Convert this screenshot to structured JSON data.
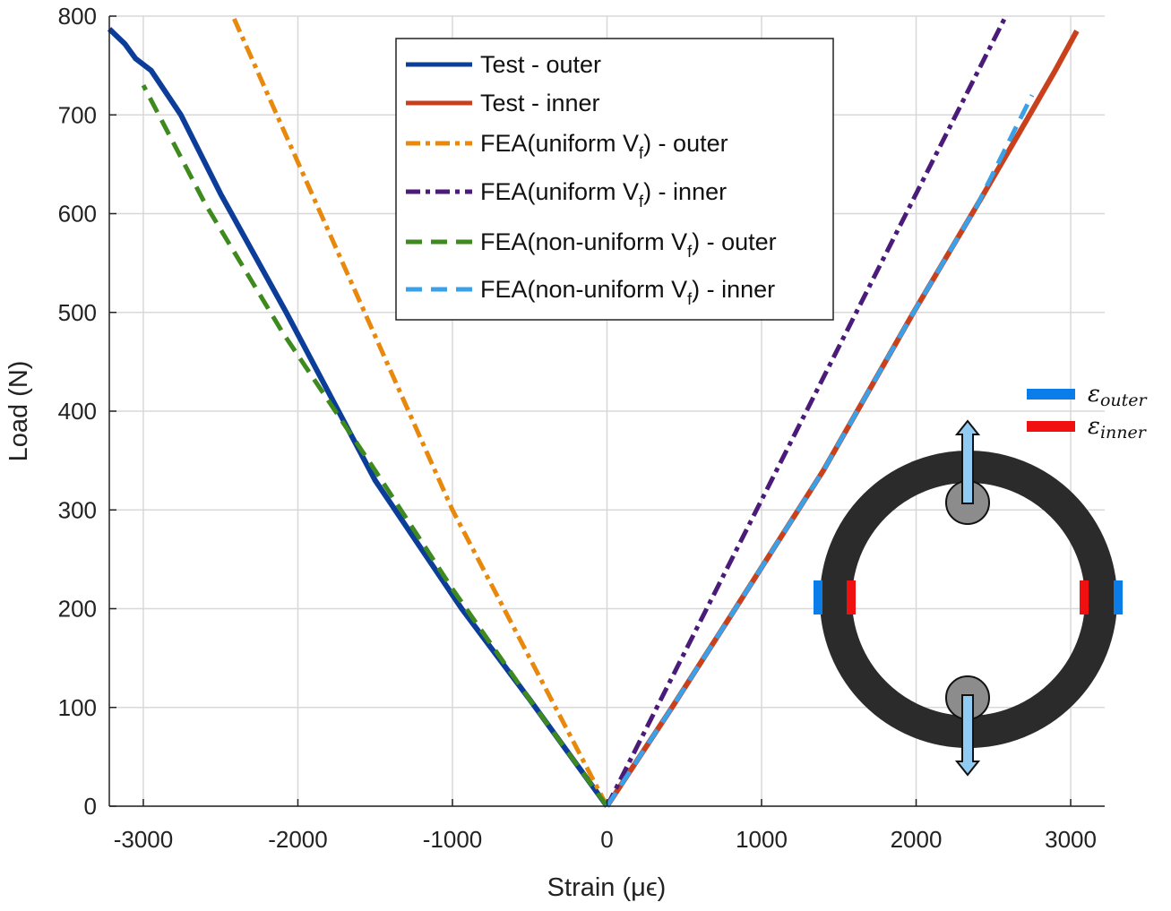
{
  "chart_data": {
    "type": "line",
    "title": "",
    "xlabel": "Strain (μϵ)",
    "ylabel": "Load (N)",
    "xlim": [
      -3220,
      3220
    ],
    "ylim": [
      0,
      800
    ],
    "xticks": [
      -3000,
      -2000,
      -1000,
      0,
      1000,
      2000,
      3000
    ],
    "xtick_labels": [
      "-3000",
      "-2000",
      "-1000",
      "0",
      "1000",
      "2000",
      "3000"
    ],
    "yticks": [
      0,
      100,
      200,
      300,
      400,
      500,
      600,
      700,
      800
    ],
    "ytick_labels": [
      "0",
      "100",
      "200",
      "300",
      "400",
      "500",
      "600",
      "700",
      "800"
    ],
    "grid": true,
    "legend_position": "top-center",
    "series": [
      {
        "name": "Test - outer",
        "label_main": "Test - outer",
        "sub": "",
        "label_tail": "",
        "color": "#0b3d99",
        "style": "solid",
        "x": [
          0,
          -500,
          -940,
          -1500,
          -2075,
          -2500,
          -2757,
          -2950,
          -3050,
          -3120,
          -3220
        ],
        "y": [
          0,
          108,
          200,
          330,
          500,
          620,
          700,
          745,
          757,
          772,
          787
        ]
      },
      {
        "name": "Test - inner",
        "label_main": "Test - inner",
        "sub": "",
        "label_tail": "",
        "color": "#c8401c",
        "style": "solid",
        "x": [
          0,
          420,
          830,
          1400,
          1983,
          2400,
          2734,
          2900,
          3040
        ],
        "y": [
          0,
          100,
          200,
          340,
          500,
          610,
          700,
          745,
          785
        ]
      },
      {
        "name": "FEA(uniform Vf) - outer",
        "label_main": "FEA(uniform V",
        "sub": "f",
        "label_tail": ") - outer",
        "color": "#e8890e",
        "style": "dashdot",
        "x": [
          0,
          -1000,
          -2420
        ],
        "y": [
          0,
          300,
          800
        ]
      },
      {
        "name": "FEA(uniform Vf) - inner",
        "label_main": "FEA(uniform V",
        "sub": "f",
        "label_tail": ") - inner",
        "color": "#4a1b78",
        "style": "dashdot",
        "x": [
          0,
          1000,
          2580
        ],
        "y": [
          0,
          310,
          800
        ]
      },
      {
        "name": "FEA(non-uniform Vf) - outer",
        "label_main": "FEA(non-uniform V",
        "sub": "f",
        "label_tail": ") - outer",
        "color": "#3e8a1e",
        "style": "dashed",
        "x": [
          0,
          -500,
          -1000,
          -1500,
          -2100,
          -2600,
          -3000
        ],
        "y": [
          0,
          108,
          220,
          340,
          480,
          610,
          730
        ]
      },
      {
        "name": "FEA(non-uniform Vf) - inner",
        "label_main": "FEA(non-uniform V",
        "sub": "f",
        "label_tail": ") - inner",
        "color": "#3aa0e8",
        "style": "dashed",
        "x": [
          0,
          420,
          830,
          1400,
          1983,
          2400,
          2750
        ],
        "y": [
          0,
          100,
          200,
          340,
          500,
          610,
          720
        ]
      }
    ]
  },
  "inset": {
    "legend": [
      {
        "symbol": "ε",
        "sub": "outer",
        "color": "#0a7de8"
      },
      {
        "symbol": "ε",
        "sub": "inner",
        "color": "#f01010"
      }
    ]
  }
}
